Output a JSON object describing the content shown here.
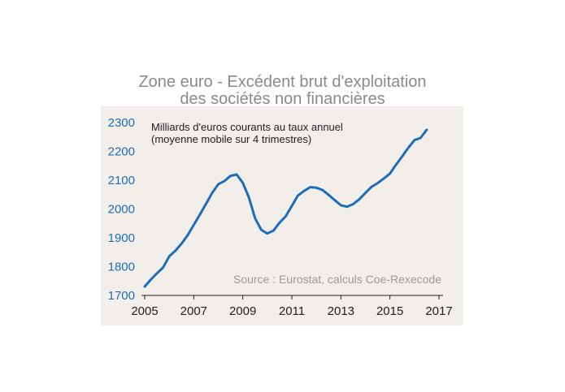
{
  "chart_data": {
    "type": "line",
    "title": [
      "Zone euro - Excédent brut d'exploitation",
      "des sociétés non financières"
    ],
    "subtitle": [
      "Milliards d'euros courants au taux annuel",
      "(moyenne mobile sur 4 trimestres)"
    ],
    "source": "Source : Eurostat, calculs Coe-Rexecode",
    "xlabel": "",
    "ylabel": "",
    "xlim": [
      2005,
      2017
    ],
    "ylim": [
      1700,
      2300
    ],
    "x_ticks": [
      "2005",
      "2007",
      "2009",
      "2011",
      "2013",
      "2015",
      "2017"
    ],
    "y_ticks": [
      "2300",
      "2200",
      "2100",
      "2000",
      "1900",
      "1800",
      "1700"
    ],
    "grid": false,
    "colors": {
      "line": "#1f6db8",
      "panel": "#f2efeb",
      "tick_labels": "#1f6db8"
    },
    "series": [
      {
        "x": [
          2005.0,
          2005.25,
          2005.5,
          2005.75,
          2006.0,
          2006.25,
          2006.5,
          2006.75,
          2007.0,
          2007.25,
          2007.5,
          2007.75,
          2008.0,
          2008.25,
          2008.5,
          2008.75,
          2009.0,
          2009.25,
          2009.5,
          2009.75,
          2010.0,
          2010.25,
          2010.5,
          2010.75,
          2011.0,
          2011.25,
          2011.5,
          2011.75,
          2012.0,
          2012.25,
          2012.5,
          2012.75,
          2013.0,
          2013.25,
          2013.5,
          2013.75,
          2014.0,
          2014.25,
          2014.5,
          2014.75,
          2015.0,
          2015.25,
          2015.5,
          2015.75,
          2016.0,
          2016.25,
          2016.5
        ],
        "values": [
          1728,
          1752,
          1774,
          1794,
          1833,
          1852,
          1877,
          1906,
          1942,
          1978,
          2015,
          2053,
          2083,
          2094,
          2112,
          2117,
          2088,
          2037,
          1965,
          1925,
          1912,
          1922,
          1950,
          1972,
          2008,
          2044,
          2060,
          2073,
          2071,
          2063,
          2046,
          2028,
          2010,
          2005,
          2014,
          2031,
          2053,
          2074,
          2087,
          2103,
          2120,
          2151,
          2180,
          2210,
          2236,
          2244,
          2272
        ]
      }
    ]
  }
}
